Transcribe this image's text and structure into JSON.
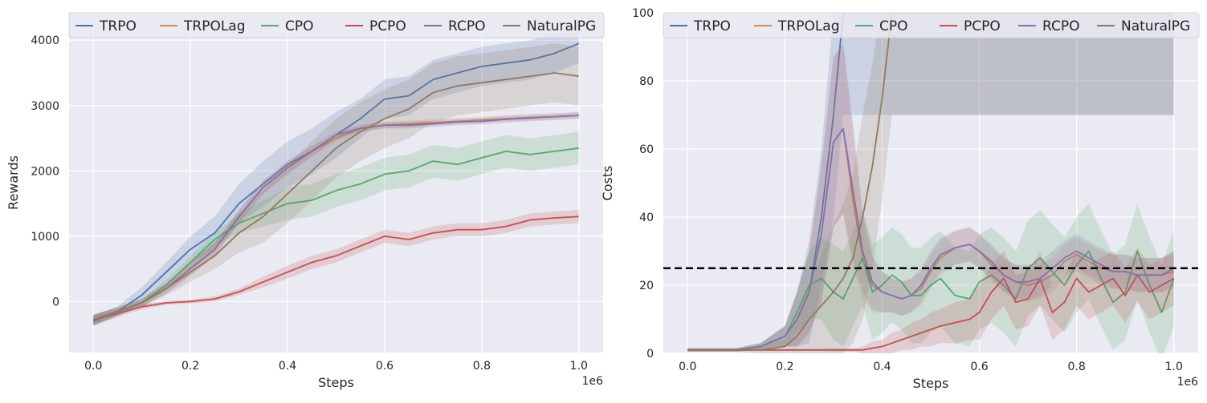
{
  "chart_data": [
    {
      "type": "line",
      "xlabel": "Steps",
      "ylabel": "Rewards",
      "x_offset_label": "1e6",
      "xlim": [
        -0.05,
        1.05
      ],
      "ylim": [
        -780,
        4420
      ],
      "xticks": [
        0.0,
        0.2,
        0.4,
        0.6,
        0.8,
        1.0
      ],
      "xtick_labels": [
        "0.0",
        "0.2",
        "0.4",
        "0.6",
        "0.8",
        "1.0"
      ],
      "yticks": [
        0,
        1000,
        2000,
        3000,
        4000
      ],
      "ytick_labels": [
        "0",
        "1000",
        "2000",
        "3000",
        "4000"
      ],
      "grid": true,
      "legend": "top",
      "x": [
        0.0,
        0.05,
        0.1,
        0.15,
        0.2,
        0.25,
        0.3,
        0.35,
        0.4,
        0.45,
        0.5,
        0.55,
        0.6,
        0.65,
        0.7,
        0.75,
        0.8,
        0.85,
        0.9,
        0.95,
        1.0
      ],
      "series": [
        {
          "name": "TRPO",
          "color": "#4c72b0",
          "values": [
            -300,
            -150,
            100,
            450,
            800,
            1050,
            1500,
            1800,
            2100,
            2300,
            2550,
            2800,
            3100,
            3150,
            3400,
            3500,
            3600,
            3650,
            3700,
            3800,
            3950
          ],
          "spread": [
            80,
            80,
            120,
            150,
            200,
            250,
            300,
            350,
            350,
            350,
            350,
            300,
            300,
            300,
            300,
            300,
            300,
            300,
            300,
            300,
            300
          ]
        },
        {
          "name": "TRPOLag",
          "color": "#dd8452",
          "values": [
            -280,
            -150,
            -20,
            200,
            500,
            800,
            1300,
            1750,
            2050,
            2300,
            2500,
            2650,
            2700,
            2720,
            2740,
            2760,
            2780,
            2800,
            2820,
            2830,
            2850
          ],
          "spread": [
            80,
            60,
            60,
            80,
            100,
            100,
            100,
            100,
            100,
            80,
            60,
            50,
            50,
            50,
            50,
            50,
            50,
            50,
            50,
            50,
            50
          ]
        },
        {
          "name": "CPO",
          "color": "#55a868",
          "values": [
            -280,
            -150,
            -20,
            250,
            600,
            950,
            1200,
            1350,
            1500,
            1550,
            1700,
            1800,
            1950,
            2000,
            2150,
            2100,
            2200,
            2300,
            2250,
            2300,
            2350
          ],
          "spread": [
            80,
            60,
            60,
            80,
            100,
            100,
            150,
            200,
            250,
            250,
            250,
            250,
            250,
            250,
            250,
            250,
            250,
            250,
            250,
            250,
            250
          ]
        },
        {
          "name": "PCPO",
          "color": "#c44e52",
          "values": [
            -280,
            -180,
            -80,
            -20,
            0,
            40,
            150,
            300,
            450,
            600,
            700,
            850,
            1000,
            950,
            1050,
            1100,
            1100,
            1150,
            1250,
            1280,
            1300
          ],
          "spread": [
            80,
            50,
            40,
            30,
            30,
            40,
            50,
            80,
            100,
            100,
            100,
            100,
            100,
            100,
            100,
            100,
            100,
            100,
            100,
            100,
            100
          ]
        },
        {
          "name": "RCPO",
          "color": "#8172b2",
          "values": [
            -280,
            -150,
            -20,
            200,
            500,
            800,
            1300,
            1750,
            2050,
            2300,
            2550,
            2650,
            2700,
            2700,
            2720,
            2750,
            2760,
            2790,
            2810,
            2830,
            2850
          ],
          "spread": [
            80,
            60,
            60,
            80,
            100,
            100,
            100,
            100,
            100,
            80,
            60,
            50,
            50,
            50,
            50,
            50,
            50,
            50,
            50,
            50,
            50
          ]
        },
        {
          "name": "NaturalPG",
          "color": "#937860",
          "values": [
            -280,
            -150,
            -20,
            200,
            450,
            700,
            1050,
            1300,
            1650,
            2000,
            2350,
            2600,
            2800,
            2950,
            3200,
            3300,
            3350,
            3400,
            3450,
            3500,
            3450
          ],
          "spread": [
            80,
            60,
            60,
            100,
            150,
            200,
            300,
            400,
            450,
            450,
            450,
            450,
            450,
            450,
            450,
            450,
            450,
            450,
            450,
            450,
            450
          ]
        }
      ]
    },
    {
      "type": "line",
      "xlabel": "Steps",
      "ylabel": "Costs",
      "x_offset_label": "1e6",
      "xlim": [
        -0.05,
        1.05
      ],
      "ylim": [
        0,
        100
      ],
      "xticks": [
        0.0,
        0.2,
        0.4,
        0.6,
        0.8,
        1.0
      ],
      "xtick_labels": [
        "0.0",
        "0.2",
        "0.4",
        "0.6",
        "0.8",
        "1.0"
      ],
      "yticks": [
        0,
        20,
        40,
        60,
        80,
        100
      ],
      "ytick_labels": [
        "0",
        "20",
        "40",
        "60",
        "80",
        "100"
      ],
      "threshold": 25,
      "grid": true,
      "legend": "top",
      "x": [
        0.0,
        0.05,
        0.1,
        0.15,
        0.2,
        0.225,
        0.25,
        0.275,
        0.3,
        0.32,
        0.34,
        0.36,
        0.38,
        0.4,
        0.42,
        0.44,
        0.46,
        0.48,
        0.5,
        0.52,
        0.55,
        0.58,
        0.6,
        0.625,
        0.65,
        0.675,
        0.7,
        0.725,
        0.75,
        0.775,
        0.8,
        0.825,
        0.85,
        0.875,
        0.9,
        0.925,
        0.95,
        0.975,
        1.0
      ],
      "series": [
        {
          "name": "TRPO",
          "color": "#4c72b0",
          "values": [
            1,
            1,
            1,
            2,
            5,
            10,
            18,
            40,
            70,
            100,
            100,
            100,
            100,
            100,
            100,
            100,
            100,
            100,
            100,
            100,
            100,
            100,
            100,
            100,
            100,
            100,
            100,
            100,
            100,
            100,
            100,
            100,
            100,
            100,
            100,
            100,
            100,
            100,
            100
          ],
          "spread": [
            0.5,
            0.5,
            0.5,
            1,
            3,
            8,
            15,
            20,
            30,
            30,
            30,
            30,
            30,
            30,
            30,
            30,
            30,
            30,
            30,
            30,
            30,
            30,
            30,
            30,
            30,
            30,
            30,
            30,
            30,
            30,
            30,
            30,
            30,
            30,
            30,
            30,
            30,
            30,
            30
          ]
        },
        {
          "name": "TRPOLag",
          "color": "#dd8452",
          "values": [
            1,
            1,
            1,
            2,
            5,
            10,
            18,
            35,
            62,
            66,
            45,
            28,
            20,
            18,
            17,
            16,
            17,
            19,
            24,
            28,
            31,
            32,
            30,
            26,
            23,
            21,
            20,
            21,
            23,
            27,
            29,
            27,
            25,
            24,
            24,
            23,
            23,
            23,
            24
          ],
          "spread": [
            0.5,
            0.5,
            0.5,
            1,
            3,
            8,
            12,
            20,
            25,
            25,
            20,
            12,
            8,
            6,
            5,
            5,
            5,
            5,
            5,
            5,
            5,
            5,
            5,
            5,
            5,
            5,
            5,
            5,
            5,
            5,
            5,
            5,
            5,
            5,
            5,
            5,
            5,
            5,
            5
          ]
        },
        {
          "name": "CPO",
          "color": "#55a868",
          "values": [
            1,
            1,
            1,
            2,
            5,
            12,
            20,
            22,
            18,
            16,
            22,
            28,
            18,
            20,
            23,
            21,
            17,
            17,
            20,
            22,
            17,
            16,
            21,
            23,
            20,
            16,
            25,
            28,
            24,
            20,
            26,
            30,
            22,
            15,
            18,
            30,
            20,
            12,
            22
          ],
          "spread": [
            0.5,
            0.5,
            0.5,
            1,
            3,
            6,
            10,
            12,
            14,
            14,
            14,
            14,
            14,
            14,
            14,
            14,
            14,
            14,
            14,
            14,
            14,
            14,
            14,
            14,
            14,
            14,
            14,
            14,
            14,
            14,
            14,
            14,
            14,
            14,
            14,
            14,
            14,
            14,
            14
          ]
        },
        {
          "name": "PCPO",
          "color": "#c44e52",
          "values": [
            1,
            1,
            1,
            1,
            1,
            1,
            1,
            1,
            1,
            1,
            1,
            1,
            1.5,
            2,
            3,
            4,
            5,
            6,
            7,
            8,
            9,
            10,
            12,
            18,
            22,
            15,
            16,
            22,
            12,
            15,
            22,
            18,
            20,
            22,
            17,
            23,
            18,
            20,
            22
          ],
          "spread": [
            0.3,
            0.3,
            0.3,
            0.3,
            0.3,
            0.3,
            0.3,
            0.3,
            0.5,
            0.5,
            0.5,
            1,
            2,
            2,
            3,
            3,
            4,
            4,
            5,
            5,
            6,
            6,
            8,
            8,
            8,
            8,
            8,
            8,
            8,
            8,
            8,
            8,
            8,
            8,
            8,
            8,
            8,
            8,
            8
          ]
        },
        {
          "name": "RCPO",
          "color": "#8172b2",
          "values": [
            1,
            1,
            1,
            2,
            5,
            10,
            18,
            35,
            62,
            66,
            48,
            30,
            21,
            18,
            17,
            16,
            17,
            20,
            25,
            29,
            31,
            32,
            30,
            27,
            23,
            21,
            21,
            22,
            25,
            28,
            30,
            28,
            26,
            24,
            24,
            23,
            23,
            23,
            25
          ],
          "spread": [
            0.5,
            0.5,
            0.5,
            1,
            3,
            8,
            12,
            20,
            25,
            25,
            20,
            12,
            8,
            6,
            5,
            5,
            5,
            5,
            5,
            5,
            5,
            5,
            5,
            5,
            5,
            5,
            5,
            5,
            5,
            5,
            5,
            5,
            5,
            5,
            5,
            5,
            5,
            5,
            5
          ]
        },
        {
          "name": "NaturalPG",
          "color": "#937860",
          "values": [
            1,
            1,
            1,
            1,
            2,
            5,
            10,
            14,
            18,
            22,
            28,
            40,
            55,
            75,
            100,
            100,
            100,
            100,
            100,
            100,
            100,
            100,
            100,
            100,
            100,
            100,
            100,
            100,
            100,
            100,
            100,
            100,
            100,
            100,
            100,
            100,
            100,
            100,
            100
          ],
          "spread": [
            0.5,
            0.5,
            0.5,
            1,
            2,
            5,
            10,
            15,
            20,
            22,
            25,
            30,
            30,
            30,
            30,
            30,
            30,
            30,
            30,
            30,
            30,
            30,
            30,
            30,
            30,
            30,
            30,
            30,
            30,
            30,
            30,
            30,
            30,
            30,
            30,
            30,
            30,
            30,
            30
          ]
        }
      ]
    }
  ]
}
